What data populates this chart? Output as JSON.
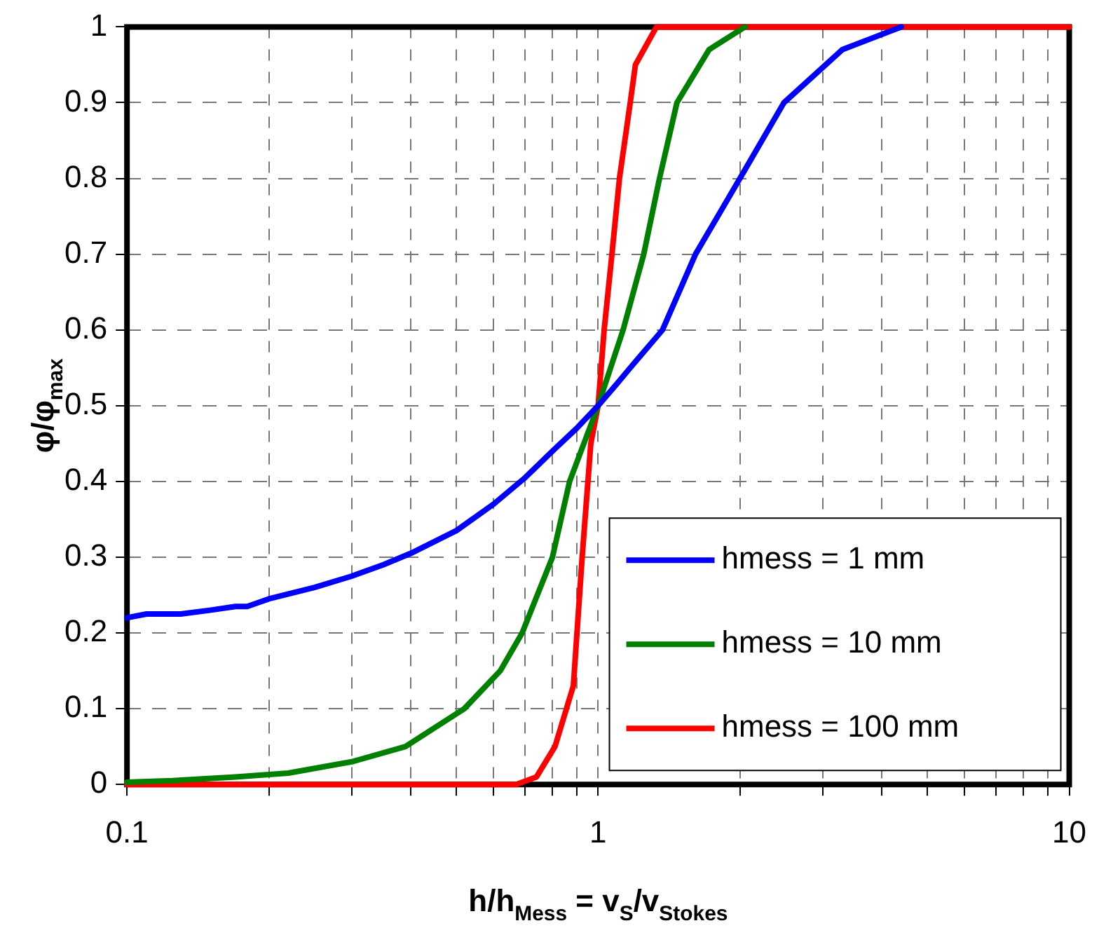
{
  "chart_data": {
    "type": "line",
    "xlabel": "h/h$_{Mess}$ = v$_{S}$/v$_{Stokes}$",
    "ylabel": "φ/φ$_{max}$",
    "log": "x",
    "xlim": [
      0.1,
      10
    ],
    "ylim": [
      0,
      1
    ],
    "xticks": [
      0.1,
      {
        "value": 0.2,
        "label": null
      },
      {
        "value": 0.3,
        "label": null
      },
      {
        "value": 0.4,
        "label": null
      },
      {
        "value": 0.5,
        "label": null
      },
      {
        "value": 0.6,
        "label": null
      },
      {
        "value": 0.7,
        "label": null
      },
      {
        "value": 0.8,
        "label": null
      },
      {
        "value": 0.9,
        "label": null
      },
      1,
      {
        "value": 2,
        "label": null
      },
      {
        "value": 3,
        "label": null
      },
      {
        "value": 4,
        "label": null
      },
      {
        "value": 5,
        "label": null
      },
      {
        "value": 6,
        "label": null
      },
      {
        "value": 7,
        "label": null
      },
      {
        "value": 8,
        "label": null
      },
      {
        "value": 9,
        "label": null
      },
      10
    ],
    "yticks": [
      0,
      0.1,
      0.2,
      0.3,
      0.4,
      0.5,
      0.6,
      0.7,
      0.8,
      0.9,
      1
    ],
    "grid": true,
    "legend": "bottom right",
    "marker": "none",
    "line_style": "solid",
    "series": [
      {
        "name": "hmess = 1 mm",
        "color": "#0000ff",
        "x": [
          0.1,
          0.11,
          0.13,
          0.15,
          0.17,
          0.18,
          0.2,
          0.25,
          0.3,
          0.35,
          0.4,
          0.5,
          0.6,
          0.7,
          0.8,
          0.9,
          1,
          1.1,
          1.17,
          1.37,
          1.61,
          2.0,
          2.48,
          3.3,
          4.4
        ],
        "values": [
          0.22,
          0.225,
          0.225,
          0.23,
          0.235,
          0.235,
          0.245,
          0.26,
          0.275,
          0.29,
          0.305,
          0.335,
          0.37,
          0.405,
          0.44,
          0.47,
          0.5,
          0.53,
          0.55,
          0.6,
          0.7,
          0.8,
          0.9,
          0.97,
          1.0
        ]
      },
      {
        "name": "hmess = 10 mm",
        "color": "#008000",
        "x": [
          0.1,
          0.125,
          0.17,
          0.22,
          0.3,
          0.39,
          0.52,
          0.62,
          0.69,
          0.8,
          0.87,
          1,
          1.13,
          1.25,
          1.35,
          1.47,
          1.72,
          2.05
        ],
        "values": [
          0.003,
          0.005,
          0.01,
          0.015,
          0.03,
          0.05,
          0.1,
          0.15,
          0.2,
          0.3,
          0.4,
          0.5,
          0.6,
          0.7,
          0.8,
          0.9,
          0.97,
          1.0
        ]
      },
      {
        "name": "hmess = 100 mm",
        "color": "#ff0000",
        "x": [
          0.1,
          0.67,
          0.74,
          0.81,
          0.886,
          0.925,
          0.965,
          1,
          1.03,
          1.07,
          1.11,
          1.17,
          1.2,
          1.33,
          10
        ],
        "values": [
          0,
          0,
          0.01,
          0.05,
          0.13,
          0.3,
          0.45,
          0.5,
          0.6,
          0.7,
          0.8,
          0.9,
          0.95,
          1.0,
          1.0
        ]
      }
    ]
  }
}
